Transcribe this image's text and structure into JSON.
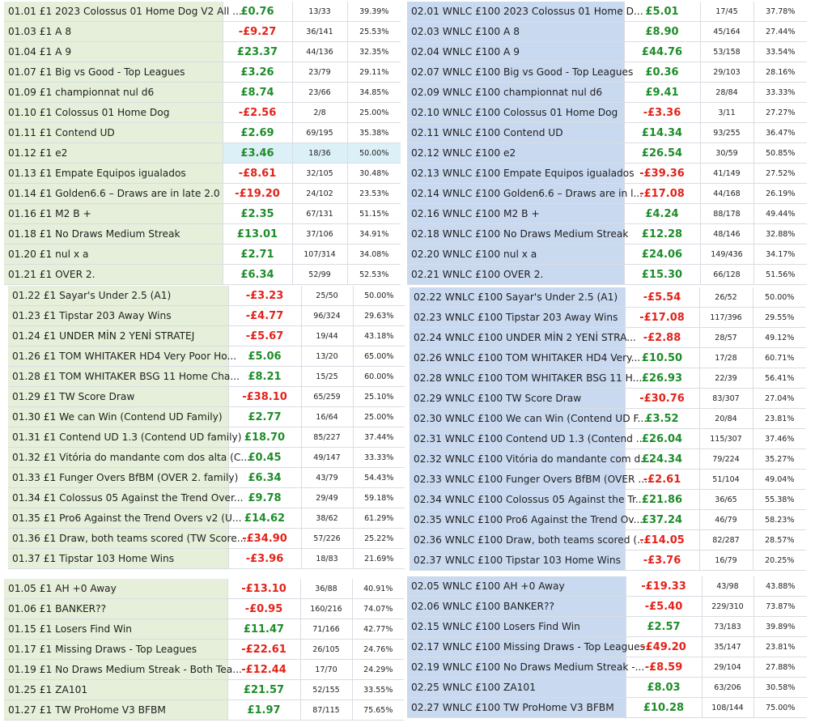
{
  "colors": {
    "positive": "#1e8c2a",
    "negative": "#e2231a",
    "green_panel": "#e6efd9",
    "blue_panel": "#c9d9f0",
    "highlight": "#dcf0f7"
  },
  "tables": [
    {
      "key": "t1",
      "theme": "green",
      "rows": [
        {
          "name": "01.01 £1 2023 Colossus 01 Home Dog V2 All ...",
          "value": "£0.76",
          "count": "13/33",
          "pct": "39.39%"
        },
        {
          "name": "01.03 £1 A 8",
          "value": "-£9.27",
          "count": "36/141",
          "pct": "25.53%"
        },
        {
          "name": "01.04 £1 A 9",
          "value": "£23.37",
          "count": "44/136",
          "pct": "32.35%"
        },
        {
          "name": "01.07 £1 Big vs Good - Top Leagues",
          "value": "£3.26",
          "count": "23/79",
          "pct": "29.11%"
        },
        {
          "name": "01.09 £1 championnat nul d6",
          "value": "£8.74",
          "count": "23/66",
          "pct": "34.85%"
        },
        {
          "name": "01.10 £1 Colossus 01 Home Dog",
          "value": "-£2.56",
          "count": "2/8",
          "pct": "25.00%"
        },
        {
          "name": "01.11 £1 Contend UD",
          "value": "£2.69",
          "count": "69/195",
          "pct": "35.38%"
        },
        {
          "name": "01.12 £1 e2",
          "value": "£3.46",
          "count": "18/36",
          "pct": "50.00%",
          "hl": true
        },
        {
          "name": "01.13 £1 Empate Equipos igualados",
          "value": "-£8.61",
          "count": "32/105",
          "pct": "30.48%"
        },
        {
          "name": "01.14 £1 Golden6.6 – Draws are in late 2.0",
          "value": "-£19.20",
          "count": "24/102",
          "pct": "23.53%"
        },
        {
          "name": "01.16 £1 M2 B +",
          "value": "£2.35",
          "count": "67/131",
          "pct": "51.15%"
        },
        {
          "name": "01.18 £1 No Draws Medium Streak",
          "value": "£13.01",
          "count": "37/106",
          "pct": "34.91%"
        },
        {
          "name": "01.20 £1 nul x a",
          "value": "£2.71",
          "count": "107/314",
          "pct": "34.08%"
        },
        {
          "name": "01.21 £1 OVER 2.",
          "value": "£6.34",
          "count": "52/99",
          "pct": "52.53%"
        }
      ]
    },
    {
      "key": "t2",
      "theme": "blue",
      "rows": [
        {
          "name": "02.01 WNLC £100 2023 Colossus 01 Home D...",
          "value": "£5.01",
          "count": "17/45",
          "pct": "37.78%"
        },
        {
          "name": "02.03 WNLC £100 A 8",
          "value": "£8.90",
          "count": "45/164",
          "pct": "27.44%"
        },
        {
          "name": "02.04 WNLC £100 A 9",
          "value": "£44.76",
          "count": "53/158",
          "pct": "33.54%"
        },
        {
          "name": "02.07 WNLC £100 Big vs Good - Top Leagues",
          "value": "£0.36",
          "count": "29/103",
          "pct": "28.16%"
        },
        {
          "name": "02.09 WNLC £100 championnat nul d6",
          "value": "£9.41",
          "count": "28/84",
          "pct": "33.33%"
        },
        {
          "name": "02.10 WNLC £100 Colossus 01 Home Dog",
          "value": "-£3.36",
          "count": "3/11",
          "pct": "27.27%"
        },
        {
          "name": "02.11 WNLC £100 Contend UD",
          "value": "£14.34",
          "count": "93/255",
          "pct": "36.47%"
        },
        {
          "name": "02.12 WNLC £100 e2",
          "value": "£26.54",
          "count": "30/59",
          "pct": "50.85%"
        },
        {
          "name": "02.13 WNLC £100 Empate Equipos igualados",
          "value": "-£39.36",
          "count": "41/149",
          "pct": "27.52%"
        },
        {
          "name": "02.14 WNLC £100 Golden6.6 – Draws are in l...",
          "value": "-£17.08",
          "count": "44/168",
          "pct": "26.19%"
        },
        {
          "name": "02.16 WNLC £100 M2 B +",
          "value": "£4.24",
          "count": "88/178",
          "pct": "49.44%"
        },
        {
          "name": "02.18 WNLC £100 No Draws Medium Streak",
          "value": "£12.28",
          "count": "48/146",
          "pct": "32.88%"
        },
        {
          "name": "02.20 WNLC £100 nul x a",
          "value": "£24.06",
          "count": "149/436",
          "pct": "34.17%"
        },
        {
          "name": "02.21 WNLC £100 OVER 2.",
          "value": "£15.30",
          "count": "66/128",
          "pct": "51.56%"
        }
      ]
    },
    {
      "key": "t3",
      "theme": "green",
      "rows": [
        {
          "name": "01.22 £1 Sayar's Under 2.5 (A1)",
          "value": "-£3.23",
          "count": "25/50",
          "pct": "50.00%"
        },
        {
          "name": "01.23 £1 Tipstar 203 Away Wins",
          "value": "-£4.77",
          "count": "96/324",
          "pct": "29.63%"
        },
        {
          "name": "01.24 £1 UNDER MİN 2 YENİ STRATEJ",
          "value": "-£5.67",
          "count": "19/44",
          "pct": "43.18%"
        },
        {
          "name": "01.26 £1 TOM WHITAKER HD4 Very Poor Ho...",
          "value": "£5.06",
          "count": "13/20",
          "pct": "65.00%"
        },
        {
          "name": "01.28 £1 TOM WHITAKER BSG 11 Home Cha...",
          "value": "£8.21",
          "count": "15/25",
          "pct": "60.00%"
        },
        {
          "name": "01.29 £1 TW Score Draw",
          "value": "-£38.10",
          "count": "65/259",
          "pct": "25.10%"
        },
        {
          "name": "01.30 £1 We can Win (Contend UD Family)",
          "value": "£2.77",
          "count": "16/64",
          "pct": "25.00%"
        },
        {
          "name": "01.31 £1 Contend UD 1.3 (Contend UD family)",
          "value": "£18.70",
          "count": "85/227",
          "pct": "37.44%"
        },
        {
          "name": "01.32 £1 Vitória do mandante com dos alta (C...",
          "value": "£0.45",
          "count": "49/147",
          "pct": "33.33%"
        },
        {
          "name": "01.33 £1 Funger Overs BfBM (OVER 2. family)",
          "value": "£6.34",
          "count": "43/79",
          "pct": "54.43%"
        },
        {
          "name": "01.34 £1 Colossus 05 Against the Trend Over...",
          "value": "£9.78",
          "count": "29/49",
          "pct": "59.18%"
        },
        {
          "name": "01.35 £1 Pro6 Against the Trend Overs v2 (U...",
          "value": "£14.62",
          "count": "38/62",
          "pct": "61.29%"
        },
        {
          "name": "01.36 £1 Draw, both teams scored (TW Score...",
          "value": "-£34.90",
          "count": "57/226",
          "pct": "25.22%"
        },
        {
          "name": "01.37 £1 Tipstar 103 Home Wins",
          "value": "-£3.96",
          "count": "18/83",
          "pct": "21.69%"
        }
      ]
    },
    {
      "key": "t4",
      "theme": "blue",
      "rows": [
        {
          "name": "02.22 WNLC £100 Sayar's Under 2.5 (A1)",
          "value": "-£5.54",
          "count": "26/52",
          "pct": "50.00%"
        },
        {
          "name": "02.23 WNLC £100 Tipstar 203 Away Wins",
          "value": "-£17.08",
          "count": "117/396",
          "pct": "29.55%"
        },
        {
          "name": "02.24 WNLC £100 UNDER MİN 2 YENİ STRA...",
          "value": "-£2.88",
          "count": "28/57",
          "pct": "49.12%"
        },
        {
          "name": "02.26 WNLC £100 TOM WHITAKER HD4 Very...",
          "value": "£10.50",
          "count": "17/28",
          "pct": "60.71%"
        },
        {
          "name": "02.28 WNLC £100 TOM WHITAKER BSG 11 H...",
          "value": "£26.93",
          "count": "22/39",
          "pct": "56.41%"
        },
        {
          "name": "02.29 WNLC £100 TW Score Draw",
          "value": "-£30.76",
          "count": "83/307",
          "pct": "27.04%"
        },
        {
          "name": "02.30 WNLC £100 We can Win (Contend UD F...",
          "value": "£3.52",
          "count": "20/84",
          "pct": "23.81%"
        },
        {
          "name": "02.31 WNLC £100 Contend UD 1.3 (Contend ...",
          "value": "£26.04",
          "count": "115/307",
          "pct": "37.46%"
        },
        {
          "name": "02.32 WNLC £100 Vitória do mandante com d...",
          "value": "£24.34",
          "count": "79/224",
          "pct": "35.27%"
        },
        {
          "name": "02.33 WNLC £100 Funger Overs BfBM (OVER ...",
          "value": "-£2.61",
          "count": "51/104",
          "pct": "49.04%"
        },
        {
          "name": "02.34 WNLC £100 Colossus 05 Against the Tr...",
          "value": "£21.86",
          "count": "36/65",
          "pct": "55.38%"
        },
        {
          "name": "02.35 WNLC £100 Pro6 Against the Trend Ov...",
          "value": "£37.24",
          "count": "46/79",
          "pct": "58.23%"
        },
        {
          "name": "02.36 WNLC £100 Draw, both teams scored (...",
          "value": "-£14.05",
          "count": "82/287",
          "pct": "28.57%"
        },
        {
          "name": "02.37 WNLC £100 Tipstar 103 Home Wins",
          "value": "-£3.76",
          "count": "16/79",
          "pct": "20.25%"
        }
      ]
    },
    {
      "key": "t5",
      "theme": "green",
      "rows": [
        {
          "name": "01.05 £1 AH +0 Away",
          "value": "-£13.10",
          "count": "36/88",
          "pct": "40.91%"
        },
        {
          "name": "01.06 £1 BANKER??",
          "value": "-£0.95",
          "count": "160/216",
          "pct": "74.07%"
        },
        {
          "name": "01.15 £1 Losers Find Win",
          "value": "£11.47",
          "count": "71/166",
          "pct": "42.77%"
        },
        {
          "name": "01.17 £1 Missing Draws - Top Leagues",
          "value": "-£22.61",
          "count": "26/105",
          "pct": "24.76%"
        },
        {
          "name": "01.19 £1 No Draws Medium Streak - Both Tea...",
          "value": "-£12.44",
          "count": "17/70",
          "pct": "24.29%"
        },
        {
          "name": "01.25 £1 ZA101",
          "value": "£21.57",
          "count": "52/155",
          "pct": "33.55%"
        },
        {
          "name": "01.27 £1 TW ProHome V3 BFBM",
          "value": "£1.97",
          "count": "87/115",
          "pct": "75.65%"
        }
      ]
    },
    {
      "key": "t6",
      "theme": "blue",
      "rows": [
        {
          "name": "02.05 WNLC £100 AH +0 Away",
          "value": "-£19.33",
          "count": "43/98",
          "pct": "43.88%"
        },
        {
          "name": "02.06 WNLC £100 BANKER??",
          "value": "-£5.40",
          "count": "229/310",
          "pct": "73.87%"
        },
        {
          "name": "02.15 WNLC £100 Losers Find Win",
          "value": "£2.57",
          "count": "73/183",
          "pct": "39.89%"
        },
        {
          "name": "02.17 WNLC £100 Missing Draws - Top Leagues",
          "value": "-£49.20",
          "count": "35/147",
          "pct": "23.81%"
        },
        {
          "name": "02.19 WNLC £100 No Draws Medium Streak -...",
          "value": "-£8.59",
          "count": "29/104",
          "pct": "27.88%"
        },
        {
          "name": "02.25 WNLC £100 ZA101",
          "value": "£8.03",
          "count": "63/206",
          "pct": "30.58%"
        },
        {
          "name": "02.27 WNLC £100 TW ProHome V3 BFBM",
          "value": "£10.28",
          "count": "108/144",
          "pct": "75.00%"
        }
      ]
    }
  ]
}
